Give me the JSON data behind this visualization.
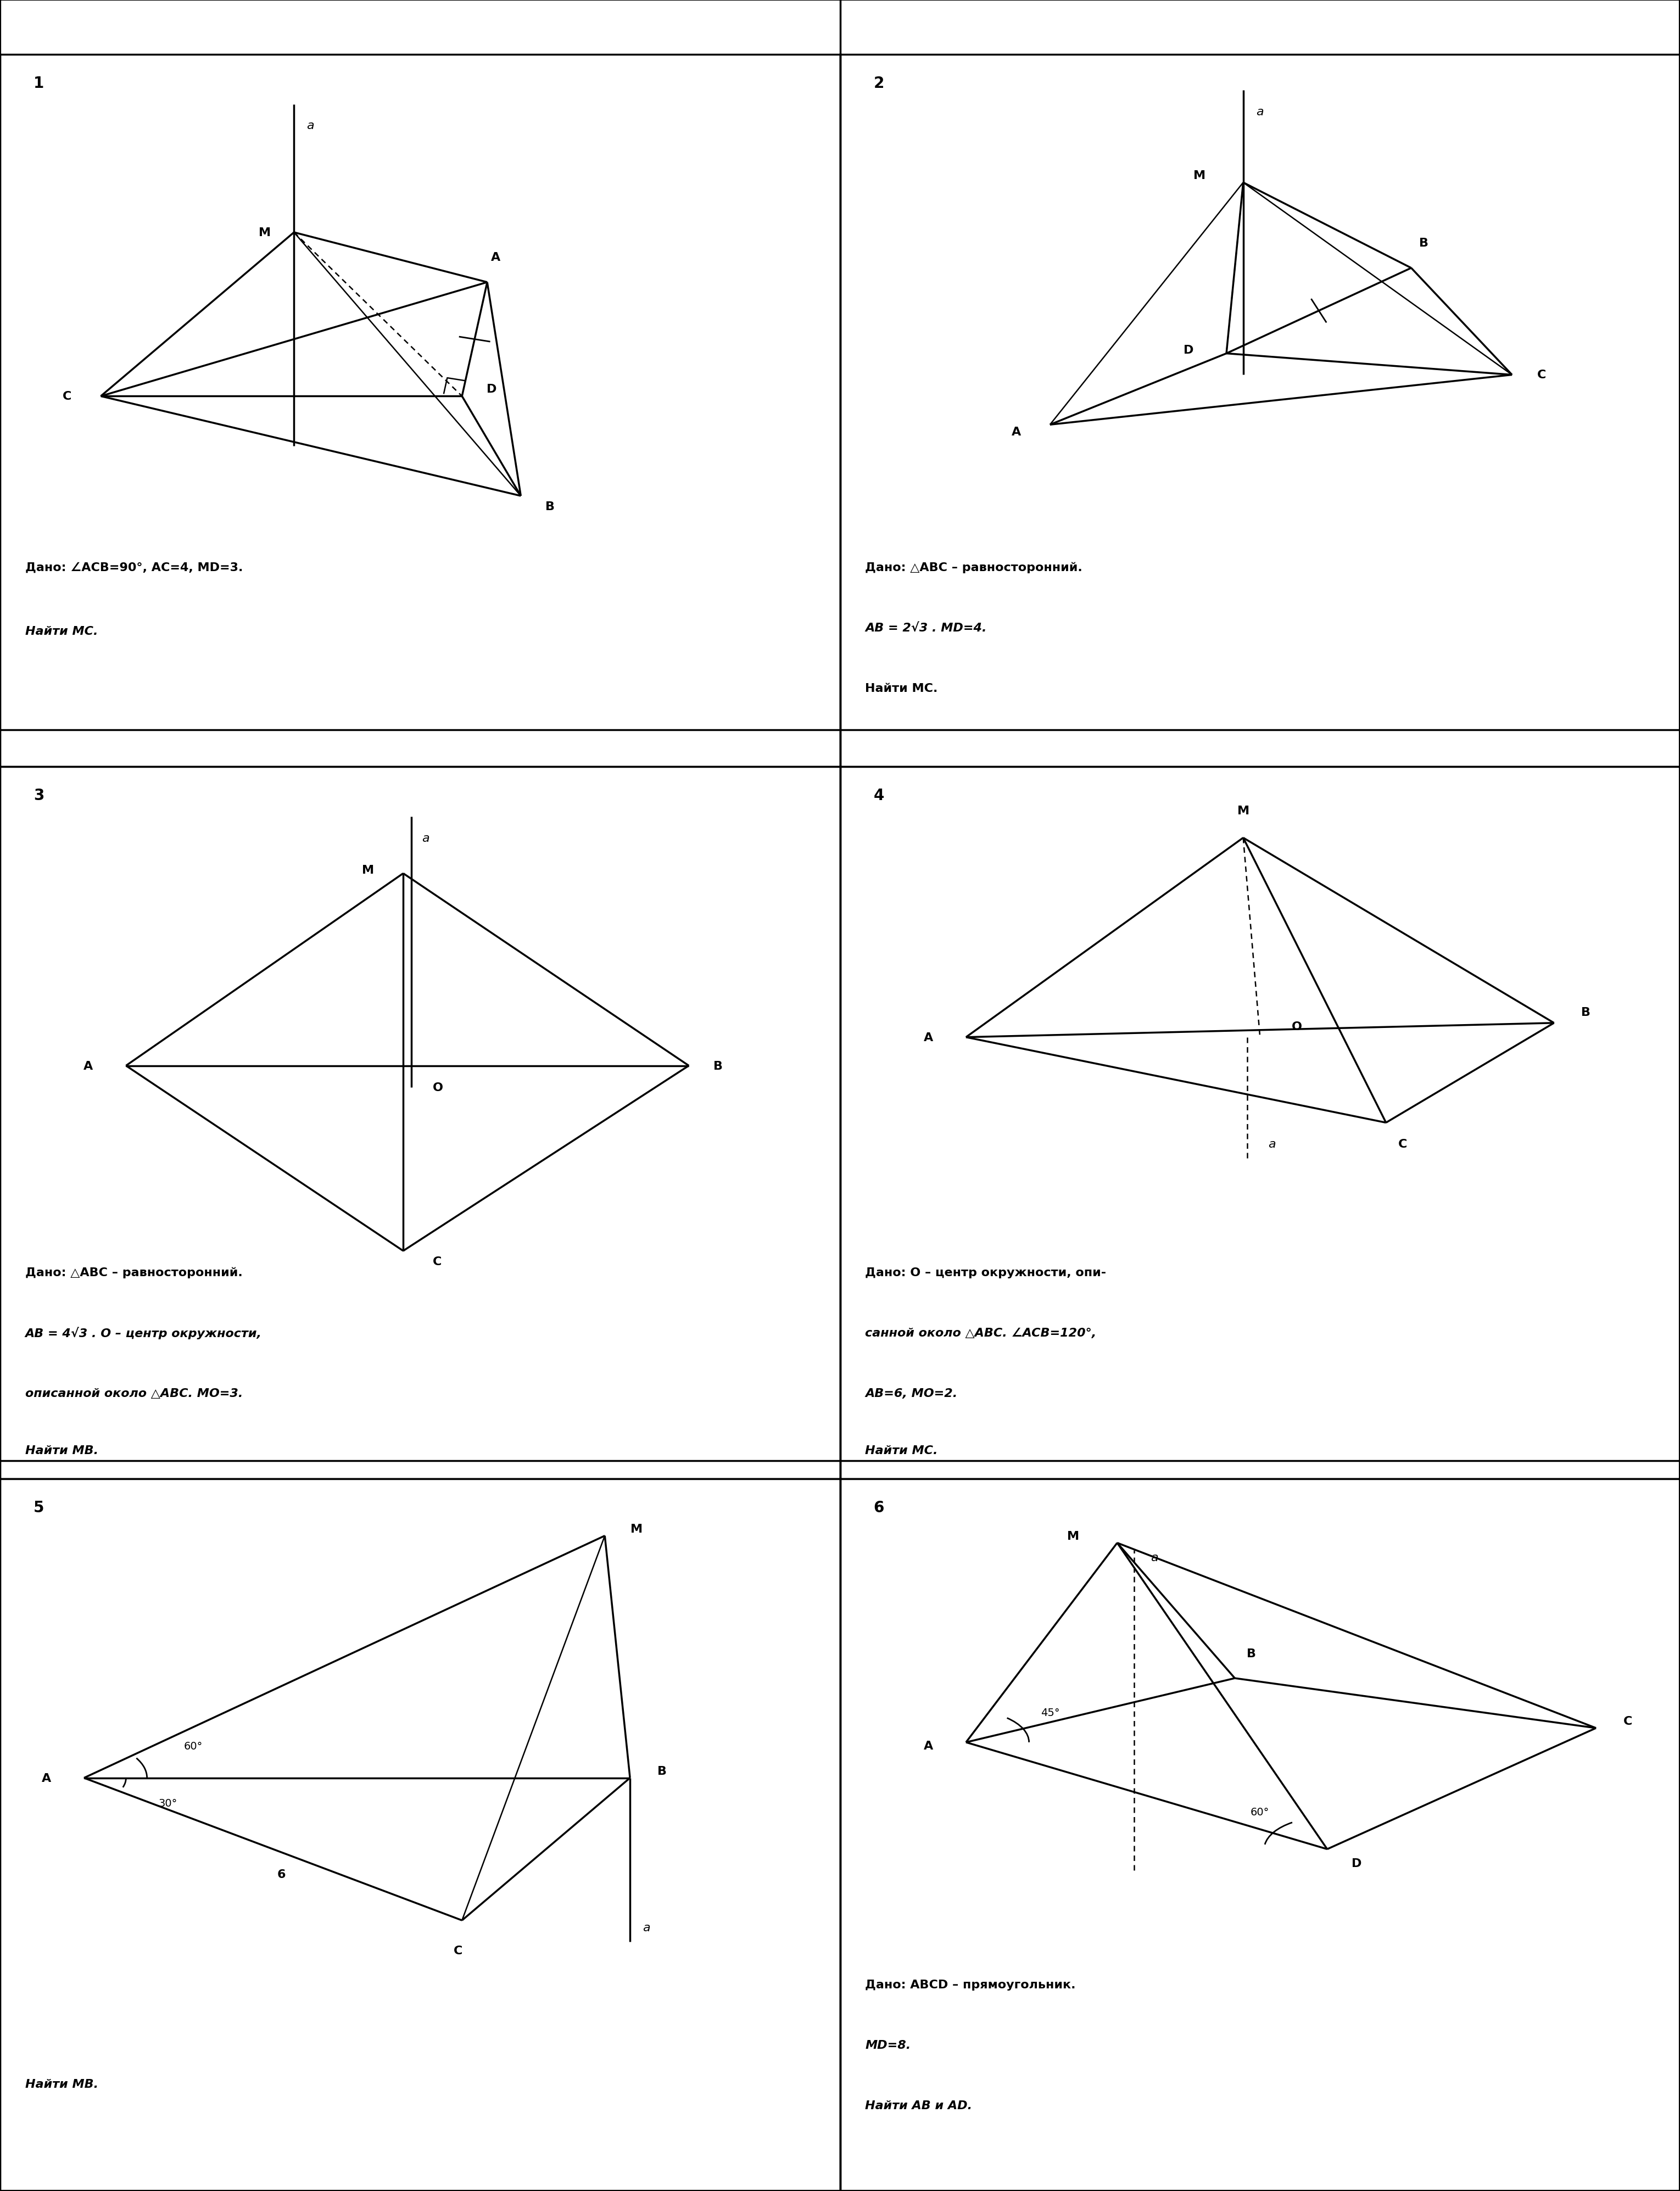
{
  "background": "#ffffff",
  "problems": [
    {
      "number": "1",
      "dado_lines": [
        {
          "text": "Дано: ∠ACB=90°, AC=4, MD=3.",
          "bold": true,
          "italic": false
        },
        {
          "text": "Найти MC.",
          "bold": true,
          "italic": true
        }
      ]
    },
    {
      "number": "2",
      "dado_lines": [
        {
          "text": "Дано: △ABC – равносторонний.",
          "bold": true,
          "italic": false
        },
        {
          "text": "AB = 2√3 . MD=4.",
          "bold": true,
          "italic": true
        },
        {
          "text": "Найти MC.",
          "bold": true,
          "italic": false
        }
      ]
    },
    {
      "number": "3",
      "dado_lines": [
        {
          "text": "Дано: △ABC – равносторонний.",
          "bold": true,
          "italic": false
        },
        {
          "text": "AB = 4√3 . O – центр окружности,",
          "bold": true,
          "italic": true
        },
        {
          "text": "описанной около △ABC. MO=3.",
          "bold": true,
          "italic": true
        },
        {
          "text": "Найти MB.",
          "bold": true,
          "italic": true
        }
      ]
    },
    {
      "number": "4",
      "dado_lines": [
        {
          "text": "Дано: O – центр окружности, опи-",
          "bold": true,
          "italic": false
        },
        {
          "text": "санной около △ABC. ∠ACB=120°,",
          "bold": true,
          "italic": true
        },
        {
          "text": "AB=6, MO=2.",
          "bold": true,
          "italic": true
        },
        {
          "text": "Найти MC.",
          "bold": true,
          "italic": true
        }
      ]
    },
    {
      "number": "5",
      "dado_lines": [
        {
          "text": "Найти MB.",
          "bold": true,
          "italic": true
        }
      ]
    },
    {
      "number": "6",
      "dado_lines": [
        {
          "text": "Дано: ABCD – прямоугольник.",
          "bold": true,
          "italic": false
        },
        {
          "text": "MD=8.",
          "bold": true,
          "italic": true
        },
        {
          "text": "Найти AB и AD.",
          "bold": true,
          "italic": true
        }
      ]
    }
  ]
}
